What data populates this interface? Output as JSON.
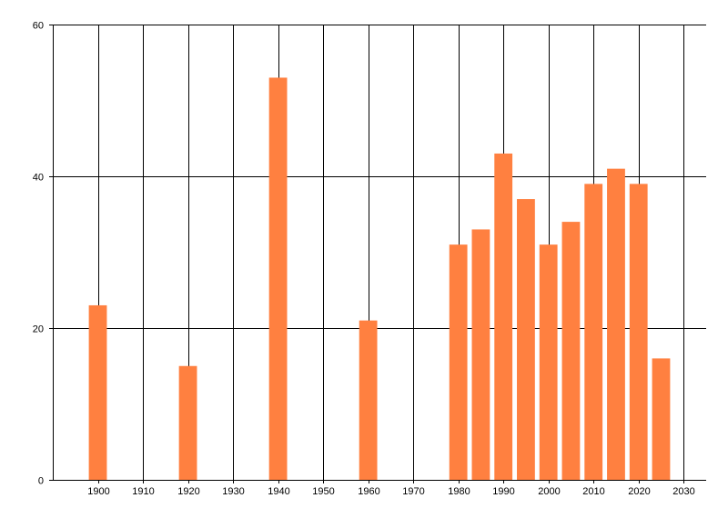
{
  "chart_data": {
    "type": "bar",
    "title": "",
    "xlabel": "",
    "ylabel": "",
    "x": [
      1900,
      1920,
      1940,
      1960,
      1980,
      1985,
      1990,
      1995,
      2000,
      2005,
      2010,
      2015,
      2020,
      2025
    ],
    "values": [
      23,
      15,
      53,
      21,
      31,
      33,
      43,
      37,
      31,
      34,
      39,
      41,
      39,
      16
    ],
    "bar_width_years": 4,
    "xlim": [
      1890,
      2035
    ],
    "ylim": [
      0,
      60
    ],
    "xticks": [
      1900,
      1910,
      1920,
      1930,
      1940,
      1950,
      1960,
      1970,
      1980,
      1990,
      2000,
      2010,
      2020,
      2030
    ],
    "yticks": [
      0,
      20,
      40,
      60
    ],
    "grid": true,
    "legend": "none",
    "bar_color": "#FF8040",
    "grid_color": "#000000"
  }
}
